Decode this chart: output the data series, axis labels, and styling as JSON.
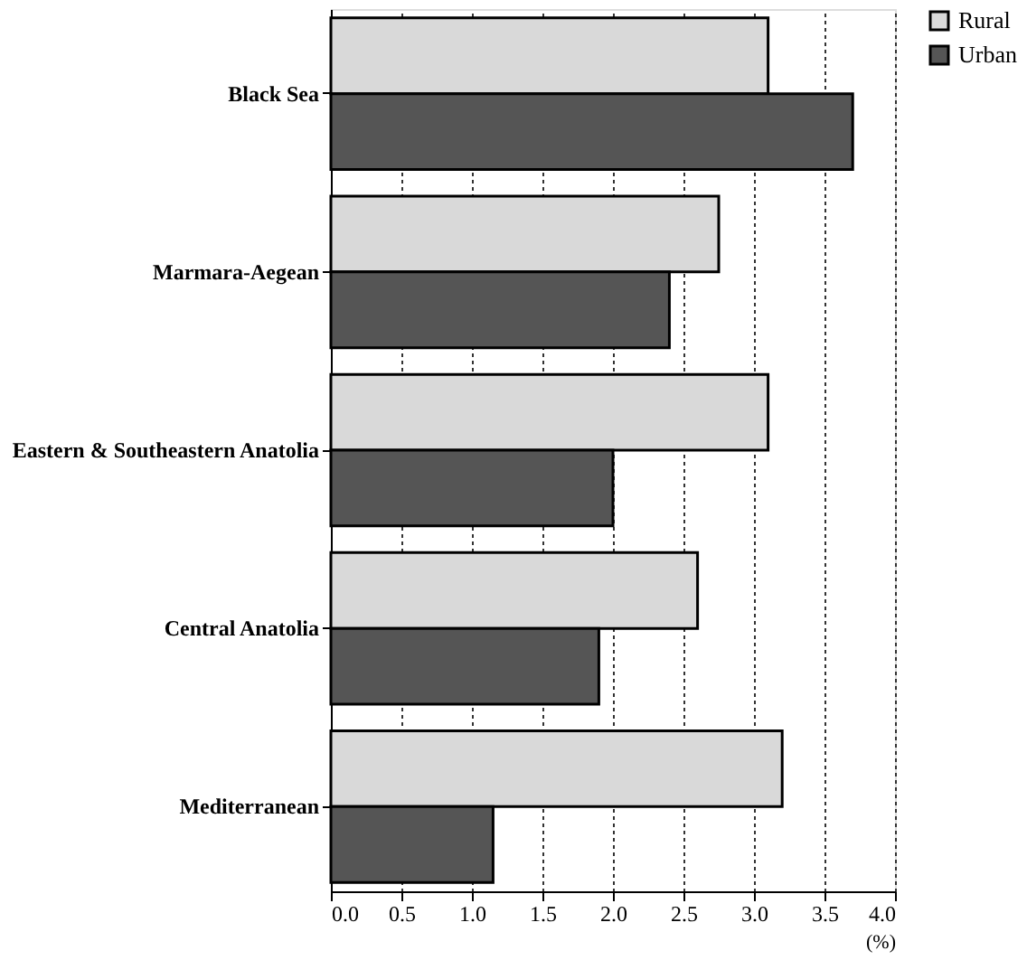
{
  "chart_data": {
    "type": "bar",
    "orientation": "horizontal",
    "categories": [
      "Black Sea",
      "Marmara-Aegean",
      "Eastern & Southeastern Anatolia",
      "Central Anatolia",
      "Mediterranean"
    ],
    "series": [
      {
        "name": "Rural",
        "color": "#d9d9d9",
        "values": [
          3.1,
          2.75,
          3.1,
          2.6,
          3.2
        ]
      },
      {
        "name": "Urban",
        "color": "#555555",
        "values": [
          3.7,
          2.4,
          2.0,
          1.9,
          1.15
        ]
      }
    ],
    "xlabel": "(%)",
    "xlim": [
      0,
      4
    ],
    "xticks": [
      {
        "value": 0,
        "label": "0.0"
      },
      0.5,
      {
        "value": 1,
        "label": "1.0"
      },
      1.5,
      {
        "value": 2,
        "label": "2.0"
      },
      2.5,
      {
        "value": 3,
        "label": "3.0"
      },
      3.5,
      {
        "value": 4,
        "label": "4.0"
      }
    ],
    "grid": "x",
    "legend": "right"
  }
}
